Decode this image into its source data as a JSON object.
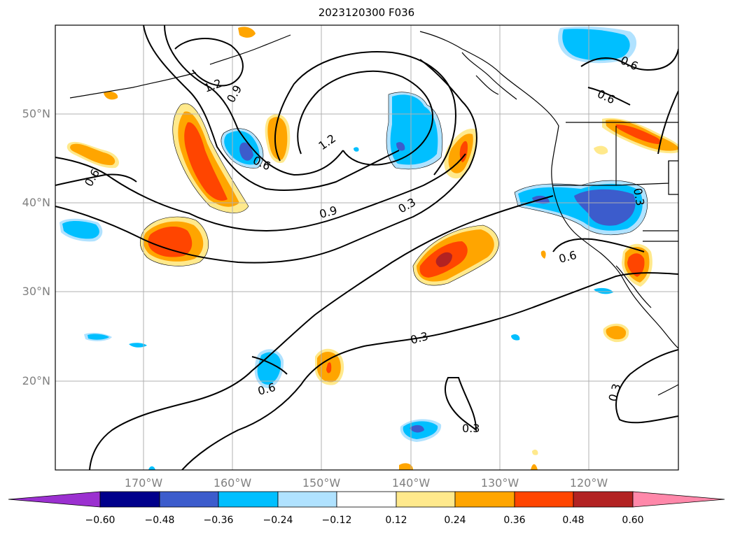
{
  "title": "2023120300 F036",
  "latitude_labels": [
    "50°N",
    "40°N",
    "30°N",
    "20°N"
  ],
  "longitude_labels": [
    "170°W",
    "160°W",
    "150°W",
    "140°W",
    "130°W",
    "120°W"
  ],
  "colorbar": {
    "ticks": [
      "−0.60",
      "−0.48",
      "−0.36",
      "−0.24",
      "−0.12",
      "0.12",
      "0.24",
      "0.36",
      "0.48",
      "0.60"
    ],
    "colors": [
      "#9b30d0",
      "#00008b",
      "#3c5ccc",
      "#00bfff",
      "#b0e2ff",
      "#ffffff",
      "#ffe98c",
      "#ffa500",
      "#ff4500",
      "#b22222",
      "#ff88aa"
    ]
  },
  "contour_labels": [
    "1.2",
    "0.9",
    "0.6",
    "0.6",
    "0.6",
    "1.2",
    "0.9",
    "0.3",
    "0.6",
    "0.3",
    "0.3",
    "0.6",
    "0.3",
    "0.6",
    "0.3"
  ],
  "icons": [
    "coastline-map",
    "contour-lines",
    "anomaly-shading"
  ]
}
